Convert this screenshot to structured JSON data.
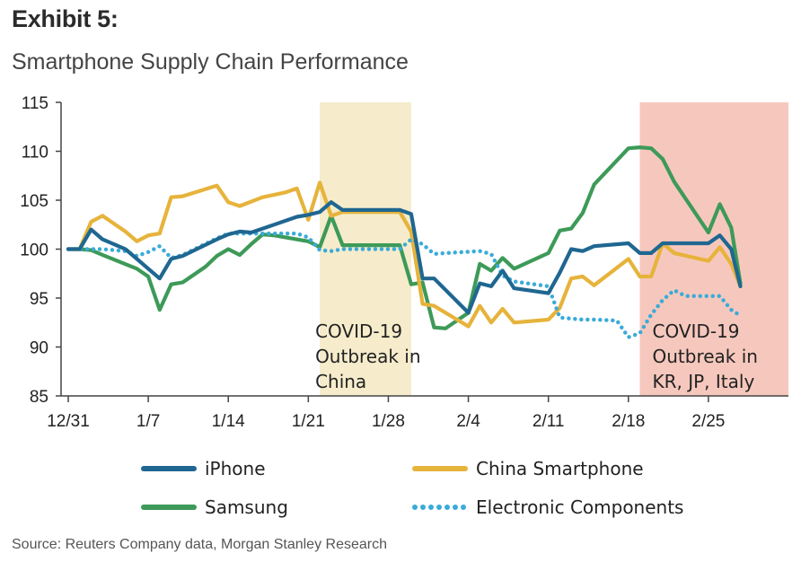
{
  "header": {
    "exhibit": "Exhibit 5:",
    "title": "Smartphone Supply Chain Performance"
  },
  "footer": {
    "source": "Source: Reuters Company data, Morgan Stanley Research"
  },
  "colors": {
    "iphone": "#1f6791",
    "china": "#e6b33b",
    "samsung": "#3d9a58",
    "electronic": "#3aabd9",
    "shade_china": "#f6eccb",
    "shade_intl": "#f6c8bd"
  },
  "chart_data": {
    "type": "line",
    "title": "",
    "xlabel": "",
    "ylabel": "",
    "ylim": [
      85,
      115
    ],
    "yticks": [
      "115",
      "110",
      "105",
      "100",
      "95",
      "90",
      "85"
    ],
    "xlim": [
      0,
      63
    ],
    "xticks": [
      {
        "x": 0,
        "label": "12/31"
      },
      {
        "x": 7,
        "label": "1/7"
      },
      {
        "x": 14,
        "label": "1/14"
      },
      {
        "x": 21,
        "label": "1/21"
      },
      {
        "x": 28,
        "label": "1/28"
      },
      {
        "x": 35,
        "label": "2/4"
      },
      {
        "x": 42,
        "label": "2/11"
      },
      {
        "x": 49,
        "label": "2/18"
      },
      {
        "x": 56,
        "label": "2/25"
      }
    ],
    "shaded_regions": [
      {
        "x0": 22,
        "x1": 30,
        "label_lines": [
          "COVID-19",
          "Outbreak in",
          "China"
        ]
      },
      {
        "x0": 50,
        "x1": 63,
        "label_lines": [
          "COVID-19",
          "Outbreak in",
          "KR, JP, Italy"
        ]
      }
    ],
    "legend_position": "bottom",
    "series": [
      {
        "name": "iPhone",
        "style": "solid",
        "points": [
          [
            0,
            100
          ],
          [
            1,
            100
          ],
          [
            2,
            102
          ],
          [
            3,
            101
          ],
          [
            5,
            100
          ],
          [
            6,
            99
          ],
          [
            7,
            98
          ],
          [
            8,
            97
          ],
          [
            9,
            99
          ],
          [
            10,
            99.3
          ],
          [
            13,
            101
          ],
          [
            14,
            101.5
          ],
          [
            15,
            101.8
          ],
          [
            16,
            101.7
          ],
          [
            18,
            102.5
          ],
          [
            20,
            103.3
          ],
          [
            21,
            103.5
          ],
          [
            22,
            103.8
          ],
          [
            23,
            104.8
          ],
          [
            24,
            104
          ],
          [
            29,
            104
          ],
          [
            30,
            103.6
          ],
          [
            31,
            97
          ],
          [
            32,
            97
          ],
          [
            35,
            93.5
          ],
          [
            36,
            96.5
          ],
          [
            37,
            96.2
          ],
          [
            38,
            97.8
          ],
          [
            39,
            96
          ],
          [
            42,
            95.5
          ],
          [
            43,
            97.6
          ],
          [
            44,
            100
          ],
          [
            45,
            99.8
          ],
          [
            46,
            100.3
          ],
          [
            49,
            100.6
          ],
          [
            50,
            99.6
          ],
          [
            51,
            99.6
          ],
          [
            52,
            100.6
          ],
          [
            55,
            100.6
          ],
          [
            56,
            100.6
          ],
          [
            57,
            101.4
          ],
          [
            58,
            100
          ],
          [
            58.8,
            96.2
          ]
        ]
      },
      {
        "name": "China Smartphone",
        "style": "solid",
        "points": [
          [
            0,
            100
          ],
          [
            1,
            100
          ],
          [
            2,
            102.8
          ],
          [
            3,
            103.4
          ],
          [
            5,
            101.8
          ],
          [
            6,
            100.8
          ],
          [
            7,
            101.4
          ],
          [
            8,
            101.6
          ],
          [
            9,
            105.3
          ],
          [
            10,
            105.4
          ],
          [
            13,
            106.5
          ],
          [
            14,
            104.8
          ],
          [
            15,
            104.4
          ],
          [
            17,
            105.3
          ],
          [
            19,
            105.8
          ],
          [
            20,
            106.2
          ],
          [
            21,
            103
          ],
          [
            22,
            106.8
          ],
          [
            23,
            103.4
          ],
          [
            24,
            103.8
          ],
          [
            29,
            103.8
          ],
          [
            30,
            101.8
          ],
          [
            31,
            94.4
          ],
          [
            32,
            94.2
          ],
          [
            35,
            92.1
          ],
          [
            36,
            94.2
          ],
          [
            37,
            92.5
          ],
          [
            38,
            93.9
          ],
          [
            39,
            92.5
          ],
          [
            42,
            92.8
          ],
          [
            43,
            94
          ],
          [
            44,
            97
          ],
          [
            45,
            97.2
          ],
          [
            46,
            96.3
          ],
          [
            49,
            99
          ],
          [
            50,
            97.2
          ],
          [
            51,
            97.2
          ],
          [
            52,
            100.6
          ],
          [
            53,
            99.6
          ],
          [
            56,
            98.8
          ],
          [
            57,
            100.2
          ],
          [
            58,
            98.5
          ],
          [
            58.8,
            96.2
          ]
        ]
      },
      {
        "name": "Samsung",
        "style": "solid",
        "points": [
          [
            0,
            100
          ],
          [
            1,
            100
          ],
          [
            2,
            99.9
          ],
          [
            3,
            99.4
          ],
          [
            6,
            98
          ],
          [
            7,
            97.2
          ],
          [
            8,
            93.8
          ],
          [
            9,
            96.4
          ],
          [
            10,
            96.6
          ],
          [
            12,
            98.2
          ],
          [
            13,
            99.3
          ],
          [
            14,
            100
          ],
          [
            15,
            99.4
          ],
          [
            16,
            100.5
          ],
          [
            17,
            101.5
          ],
          [
            18,
            101.4
          ],
          [
            21,
            100.8
          ],
          [
            22,
            100.2
          ],
          [
            23,
            103.4
          ],
          [
            24,
            100.4
          ],
          [
            29,
            100.4
          ],
          [
            30,
            96.4
          ],
          [
            31,
            96.6
          ],
          [
            32,
            92
          ],
          [
            33,
            91.9
          ],
          [
            35,
            93.5
          ],
          [
            36,
            98.5
          ],
          [
            37,
            97.8
          ],
          [
            38,
            99.1
          ],
          [
            39,
            98
          ],
          [
            42,
            99.6
          ],
          [
            43,
            101.9
          ],
          [
            44,
            102.1
          ],
          [
            45,
            103.7
          ],
          [
            46,
            106.6
          ],
          [
            49,
            110.3
          ],
          [
            50,
            110.4
          ],
          [
            51,
            110.3
          ],
          [
            52,
            109.2
          ],
          [
            53,
            106.9
          ],
          [
            56,
            101.7
          ],
          [
            57,
            104.6
          ],
          [
            58,
            102.2
          ],
          [
            58.8,
            96.5
          ]
        ]
      },
      {
        "name": "Electronic Components",
        "style": "dotted",
        "points": [
          [
            0,
            100
          ],
          [
            2,
            100
          ],
          [
            3,
            100
          ],
          [
            5,
            99.8
          ],
          [
            6,
            99.3
          ],
          [
            7,
            99.7
          ],
          [
            8,
            100.3
          ],
          [
            9,
            99.1
          ],
          [
            10,
            99.4
          ],
          [
            13,
            101.1
          ],
          [
            14,
            101.6
          ],
          [
            18,
            101.6
          ],
          [
            20,
            101.6
          ],
          [
            21,
            101.2
          ],
          [
            22,
            99.9
          ],
          [
            23,
            99.8
          ],
          [
            24,
            100
          ],
          [
            29,
            100
          ],
          [
            30,
            101
          ],
          [
            31,
            100.5
          ],
          [
            32,
            99.5
          ],
          [
            33,
            99.6
          ],
          [
            36,
            99.8
          ],
          [
            37,
            99.5
          ],
          [
            38,
            97.3
          ],
          [
            39,
            96.7
          ],
          [
            42,
            96.2
          ],
          [
            43,
            93
          ],
          [
            45,
            92.8
          ],
          [
            46,
            92.8
          ],
          [
            48,
            92.7
          ],
          [
            49,
            91
          ],
          [
            50,
            91.4
          ],
          [
            51,
            93.3
          ],
          [
            52,
            94.8
          ],
          [
            53,
            95.8
          ],
          [
            54,
            95.2
          ],
          [
            55,
            95.2
          ],
          [
            57,
            95.2
          ],
          [
            58,
            93.8
          ],
          [
            58.8,
            93.2
          ]
        ]
      }
    ]
  }
}
